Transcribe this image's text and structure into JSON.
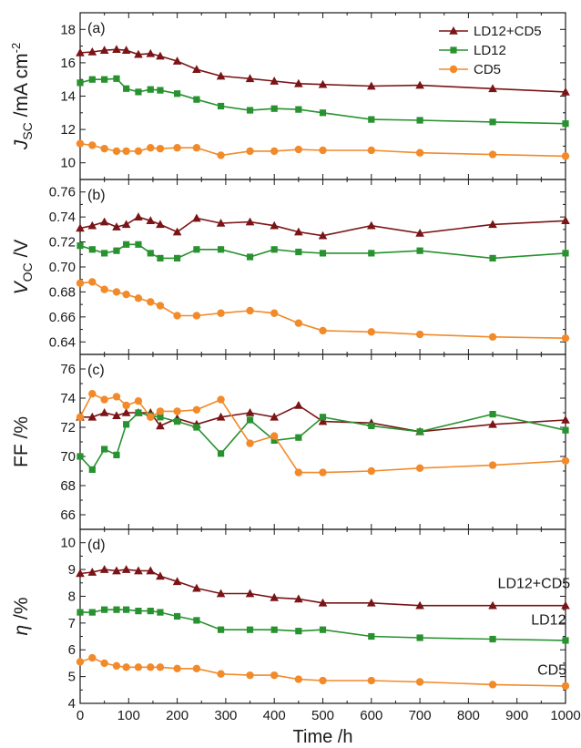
{
  "colors": {
    "LD12+CD5": "#7a1416",
    "LD12": "#27922f",
    "CD5": "#f28a2a"
  },
  "chart_data": {
    "type": "line",
    "xlabel": "Time /h",
    "xlim": [
      0,
      1000
    ],
    "xticks": [
      0,
      100,
      200,
      300,
      400,
      500,
      600,
      700,
      800,
      900,
      1000
    ],
    "legend": {
      "placement": "top-right",
      "entries": [
        {
          "name": "LD12+CD5",
          "marker": "triangle"
        },
        {
          "name": "LD12",
          "marker": "square"
        },
        {
          "name": "CD5",
          "marker": "circle"
        }
      ]
    },
    "panels": [
      {
        "id": "a",
        "letter": "(a)",
        "ylabel": {
          "main": "J",
          "sub": "SC",
          "rest": " /mA cm",
          "sup": "-2"
        },
        "ylim": [
          9,
          19
        ],
        "yticks": [
          10,
          12,
          14,
          16,
          18
        ],
        "yticklabels": [
          "10",
          "12",
          "14",
          "16",
          "18"
        ],
        "series": [
          {
            "name": "LD12+CD5",
            "marker": "triangle",
            "x": [
              0,
              25,
              50,
              75,
              95,
              120,
              145,
              165,
              200,
              240,
              290,
              350,
              400,
              450,
              500,
              600,
              700,
              850,
              1000
            ],
            "y": [
              16.6,
              16.65,
              16.75,
              16.8,
              16.75,
              16.5,
              16.55,
              16.4,
              16.1,
              15.6,
              15.2,
              15.05,
              14.9,
              14.75,
              14.7,
              14.6,
              14.65,
              14.45,
              14.25
            ]
          },
          {
            "name": "LD12",
            "marker": "square",
            "x": [
              0,
              25,
              50,
              75,
              95,
              120,
              145,
              165,
              200,
              240,
              290,
              350,
              400,
              450,
              500,
              600,
              700,
              850,
              1000
            ],
            "y": [
              14.8,
              15.0,
              15.0,
              15.05,
              14.45,
              14.25,
              14.4,
              14.35,
              14.15,
              13.8,
              13.4,
              13.15,
              13.25,
              13.2,
              13.0,
              12.6,
              12.55,
              12.45,
              12.35
            ]
          },
          {
            "name": "CD5",
            "marker": "circle",
            "x": [
              0,
              25,
              50,
              75,
              95,
              120,
              145,
              165,
              200,
              240,
              290,
              350,
              400,
              450,
              500,
              600,
              700,
              850,
              1000
            ],
            "y": [
              11.15,
              11.05,
              10.85,
              10.7,
              10.7,
              10.7,
              10.9,
              10.85,
              10.9,
              10.9,
              10.45,
              10.7,
              10.7,
              10.8,
              10.75,
              10.75,
              10.6,
              10.5,
              10.4
            ]
          }
        ]
      },
      {
        "id": "b",
        "letter": "(b)",
        "ylabel": {
          "main": "V",
          "sub": "OC",
          "rest": " /V",
          "sup": ""
        },
        "ylim": [
          0.63,
          0.77
        ],
        "yticks": [
          0.64,
          0.66,
          0.68,
          0.7,
          0.72,
          0.74,
          0.76
        ],
        "yticklabels": [
          "0.64",
          "0.66",
          "0.68",
          "0.70",
          "0.72",
          "0.74",
          "0.76"
        ],
        "series": [
          {
            "name": "LD12+CD5",
            "marker": "triangle",
            "x": [
              0,
              25,
              50,
              75,
              95,
              120,
              145,
              165,
              200,
              240,
              290,
              350,
              400,
              450,
              500,
              600,
              700,
              850,
              1000
            ],
            "y": [
              0.731,
              0.733,
              0.736,
              0.732,
              0.734,
              0.74,
              0.737,
              0.734,
              0.728,
              0.739,
              0.735,
              0.736,
              0.733,
              0.728,
              0.725,
              0.733,
              0.727,
              0.734,
              0.737
            ]
          },
          {
            "name": "LD12",
            "marker": "square",
            "x": [
              0,
              25,
              50,
              75,
              95,
              120,
              145,
              165,
              200,
              240,
              290,
              350,
              400,
              450,
              500,
              600,
              700,
              850,
              1000
            ],
            "y": [
              0.717,
              0.714,
              0.711,
              0.713,
              0.718,
              0.718,
              0.711,
              0.707,
              0.707,
              0.714,
              0.714,
              0.708,
              0.714,
              0.712,
              0.711,
              0.711,
              0.713,
              0.707,
              0.711
            ]
          },
          {
            "name": "CD5",
            "marker": "circle",
            "x": [
              0,
              25,
              50,
              75,
              95,
              120,
              145,
              165,
              200,
              240,
              290,
              350,
              400,
              450,
              500,
              600,
              700,
              850,
              1000
            ],
            "y": [
              0.687,
              0.688,
              0.682,
              0.68,
              0.678,
              0.675,
              0.672,
              0.669,
              0.661,
              0.661,
              0.663,
              0.665,
              0.663,
              0.655,
              0.649,
              0.648,
              0.646,
              0.644,
              0.643
            ]
          }
        ]
      },
      {
        "id": "c",
        "letter": "(c)",
        "ylabel": {
          "main": "FF /%",
          "sub": "",
          "rest": "",
          "sup": ""
        },
        "ylim": [
          65,
          77
        ],
        "yticks": [
          66,
          68,
          70,
          72,
          74,
          76
        ],
        "yticklabels": [
          "66",
          "68",
          "70",
          "72",
          "74",
          "76"
        ],
        "series": [
          {
            "name": "LD12+CD5",
            "marker": "triangle",
            "x": [
              0,
              25,
              50,
              75,
              95,
              120,
              145,
              165,
              200,
              240,
              290,
              350,
              400,
              450,
              500,
              600,
              700,
              850,
              1000
            ],
            "y": [
              72.7,
              72.7,
              73.0,
              72.8,
              73.0,
              73.0,
              73.0,
              72.1,
              72.6,
              72.2,
              72.7,
              73.0,
              72.7,
              73.5,
              72.4,
              72.3,
              71.7,
              72.2,
              72.5
            ]
          },
          {
            "name": "LD12",
            "marker": "square",
            "x": [
              0,
              25,
              50,
              75,
              95,
              120,
              145,
              165,
              200,
              240,
              290,
              350,
              400,
              450,
              500,
              600,
              700,
              850,
              1000
            ],
            "y": [
              70.0,
              69.1,
              70.5,
              70.1,
              72.2,
              73.0,
              72.8,
              72.7,
              72.4,
              72.0,
              70.2,
              72.5,
              71.1,
              71.3,
              72.7,
              72.1,
              71.7,
              72.9,
              71.8
            ]
          },
          {
            "name": "CD5",
            "marker": "circle",
            "x": [
              0,
              25,
              50,
              75,
              95,
              120,
              145,
              165,
              200,
              240,
              290,
              350,
              400,
              450,
              500,
              600,
              700,
              850,
              1000
            ],
            "y": [
              72.7,
              74.3,
              73.9,
              74.1,
              73.5,
              73.8,
              72.7,
              73.1,
              73.1,
              73.2,
              73.9,
              70.9,
              71.4,
              68.9,
              68.9,
              69.0,
              69.2,
              69.4,
              69.7
            ]
          }
        ]
      },
      {
        "id": "d",
        "letter": "(d)",
        "ylabel": {
          "main": "η /%",
          "sub": "",
          "rest": "",
          "sup": ""
        },
        "ylim": [
          4,
          10.5
        ],
        "yticks": [
          4,
          5,
          6,
          7,
          8,
          9,
          10
        ],
        "yticklabels": [
          "4",
          "5",
          "6",
          "7",
          "8",
          "9",
          "10"
        ],
        "series_labels": [
          {
            "text": "LD12+CD5",
            "at": [
              935,
              8.3
            ]
          },
          {
            "text": "LD12",
            "at": [
              965,
              6.95
            ]
          },
          {
            "text": "CD5",
            "at": [
              972,
              5.07
            ]
          }
        ],
        "series": [
          {
            "name": "LD12+CD5",
            "marker": "triangle",
            "x": [
              0,
              25,
              50,
              75,
              95,
              120,
              145,
              165,
              200,
              240,
              290,
              350,
              400,
              450,
              500,
              600,
              700,
              850,
              1000
            ],
            "y": [
              8.85,
              8.9,
              9.0,
              8.95,
              9.0,
              8.95,
              8.95,
              8.75,
              8.55,
              8.3,
              8.1,
              8.1,
              7.95,
              7.9,
              7.75,
              7.75,
              7.65,
              7.65,
              7.65
            ]
          },
          {
            "name": "LD12",
            "marker": "square",
            "x": [
              0,
              25,
              50,
              75,
              95,
              120,
              145,
              165,
              200,
              240,
              290,
              350,
              400,
              450,
              500,
              600,
              700,
              850,
              1000
            ],
            "y": [
              7.4,
              7.4,
              7.5,
              7.5,
              7.5,
              7.45,
              7.45,
              7.4,
              7.25,
              7.1,
              6.75,
              6.75,
              6.75,
              6.7,
              6.75,
              6.5,
              6.45,
              6.4,
              6.35
            ]
          },
          {
            "name": "CD5",
            "marker": "circle",
            "x": [
              0,
              25,
              50,
              75,
              95,
              120,
              145,
              165,
              200,
              240,
              290,
              350,
              400,
              450,
              500,
              600,
              700,
              850,
              1000
            ],
            "y": [
              5.55,
              5.7,
              5.5,
              5.4,
              5.35,
              5.35,
              5.35,
              5.35,
              5.3,
              5.3,
              5.1,
              5.05,
              5.05,
              4.9,
              4.85,
              4.85,
              4.8,
              4.7,
              4.65
            ]
          }
        ]
      }
    ]
  }
}
